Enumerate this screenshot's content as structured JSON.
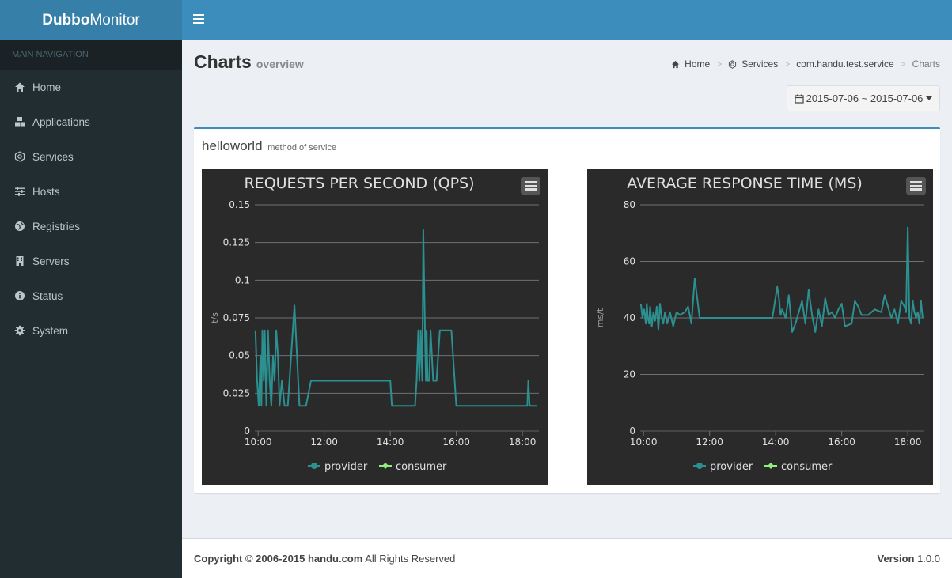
{
  "app": {
    "logo_bold": "Dubbo",
    "logo_rest": "Monitor"
  },
  "sidebar": {
    "header": "MAIN NAVIGATION",
    "items": [
      {
        "label": "Home",
        "icon": "home-icon"
      },
      {
        "label": "Applications",
        "icon": "cubes-icon"
      },
      {
        "label": "Services",
        "icon": "gear-outline-icon"
      },
      {
        "label": "Hosts",
        "icon": "sliders-icon"
      },
      {
        "label": "Registries",
        "icon": "globe-icon"
      },
      {
        "label": "Servers",
        "icon": "building-icon"
      },
      {
        "label": "Status",
        "icon": "info-icon"
      },
      {
        "label": "System",
        "icon": "gear-icon"
      }
    ]
  },
  "page": {
    "title": "Charts",
    "subtitle": "overview"
  },
  "breadcrumb": [
    "Home",
    "Services",
    "com.handu.test.service",
    "Charts"
  ],
  "date_range": "2015-07-06 ~ 2015-07-06",
  "box": {
    "title": "helloworld",
    "subtitle": "method of service"
  },
  "chart_data": [
    {
      "type": "line",
      "title": "REQUESTS PER SECOND (QPS)",
      "ylabel": "t/s",
      "ylim": [
        0,
        0.15
      ],
      "yticks": [
        0,
        0.025,
        0.05,
        0.075,
        0.1,
        0.125,
        0.15
      ],
      "ytick_labels": [
        "0",
        "0.025",
        "0.05",
        "0.075",
        "0.1",
        "0.125",
        "0.15"
      ],
      "xlim": [
        9.9,
        18.5
      ],
      "xticks": [
        10,
        12,
        14,
        16,
        18
      ],
      "xtick_labels": [
        "10:00",
        "12:00",
        "14:00",
        "16:00",
        "18:00"
      ],
      "series": [
        {
          "name": "provider",
          "color": "#2b908f",
          "x": [
            9.92,
            9.97,
            10.02,
            10.07,
            10.1,
            10.13,
            10.17,
            10.2,
            10.25,
            10.3,
            10.35,
            10.4,
            10.45,
            10.5,
            10.55,
            10.6,
            10.65,
            10.72,
            10.8,
            10.85,
            10.9,
            11.0,
            11.1,
            11.25,
            11.35,
            11.45,
            11.6,
            11.65,
            11.8,
            12.0,
            13.0,
            14.0,
            14.05,
            14.5,
            14.75,
            14.8,
            14.85,
            14.88,
            14.92,
            14.97,
            15.0,
            15.05,
            15.08,
            15.1,
            15.13,
            15.18,
            15.22,
            15.3,
            15.4,
            15.5,
            15.6,
            15.75,
            15.85,
            16.0,
            16.15,
            16.2,
            17.0,
            17.5,
            18.0,
            18.15,
            18.18,
            18.22,
            18.3,
            18.45
          ],
          "y": [
            0.0667,
            0.0333,
            0.0167,
            0.05,
            0.0167,
            0.0667,
            0.0333,
            0.0667,
            0.0167,
            0.0667,
            0.0333,
            0.0167,
            0.05,
            0.0333,
            0.0667,
            0.05,
            0.0167,
            0.0333,
            0.0167,
            0.0167,
            0.0167,
            0.05,
            0.0833,
            0.0167,
            0.0167,
            0.0167,
            0.0333,
            0.0333,
            0.0333,
            0.0333,
            0.0333,
            0.0333,
            0.0167,
            0.0167,
            0.0167,
            0.0333,
            0.0667,
            0.0333,
            0.0667,
            0.0333,
            0.1333,
            0.0667,
            0.0333,
            0.0667,
            0.0333,
            0.0333,
            0.0667,
            0.0333,
            0.0333,
            0.0667,
            0.0667,
            0.0667,
            0.0667,
            0.0167,
            0.0167,
            0.0167,
            0.0167,
            0.0167,
            0.0167,
            0.0167,
            0.0333,
            0.0167,
            0.0167,
            0.0167
          ]
        },
        {
          "name": "consumer",
          "color": "#90ee7e",
          "x": [],
          "y": []
        }
      ],
      "legend": "bottom-center"
    },
    {
      "type": "line",
      "title": "AVERAGE RESPONSE TIME (MS)",
      "ylabel": "ms/t",
      "ylim": [
        0,
        80
      ],
      "yticks": [
        0,
        20,
        40,
        60,
        80
      ],
      "ytick_labels": [
        "0",
        "20",
        "40",
        "60",
        "80"
      ],
      "xlim": [
        9.9,
        18.5
      ],
      "xticks": [
        10,
        12,
        14,
        16,
        18
      ],
      "xtick_labels": [
        "10:00",
        "12:00",
        "14:00",
        "16:00",
        "18:00"
      ],
      "series": [
        {
          "name": "provider",
          "color": "#2b908f",
          "x": [
            9.92,
            9.97,
            10.02,
            10.07,
            10.1,
            10.13,
            10.17,
            10.2,
            10.25,
            10.3,
            10.35,
            10.4,
            10.45,
            10.5,
            10.55,
            10.6,
            10.65,
            10.72,
            10.8,
            10.9,
            11.0,
            11.1,
            11.25,
            11.35,
            11.45,
            11.55,
            11.7,
            12.0,
            13.0,
            13.9,
            14.05,
            14.1,
            14.15,
            14.2,
            14.3,
            14.4,
            14.5,
            14.6,
            14.7,
            14.8,
            14.9,
            15.0,
            15.1,
            15.2,
            15.3,
            15.4,
            15.5,
            15.6,
            15.7,
            15.8,
            15.9,
            16.0,
            16.1,
            16.3,
            16.4,
            16.5,
            16.6,
            16.8,
            17.0,
            17.2,
            17.3,
            17.5,
            17.6,
            17.7,
            17.8,
            17.9,
            17.95,
            18.0,
            18.05,
            18.1,
            18.15,
            18.2,
            18.25,
            18.3,
            18.35,
            18.4,
            18.45
          ],
          "y": [
            45,
            40,
            43,
            38,
            45,
            40,
            38,
            44,
            37,
            42,
            39,
            44,
            36,
            45,
            40,
            38,
            42,
            38,
            42,
            37,
            42,
            41,
            42,
            44,
            38,
            54,
            40,
            40,
            40,
            40,
            51,
            47,
            41,
            43,
            40,
            48,
            35,
            38,
            42,
            46,
            38,
            50,
            41,
            35,
            43,
            37,
            47,
            41,
            42,
            40,
            43,
            45,
            37,
            38,
            46,
            44,
            41,
            41,
            43,
            42,
            48,
            40,
            43,
            38,
            46,
            44,
            42,
            72,
            40,
            38,
            46,
            42,
            40,
            42,
            38,
            46,
            40
          ]
        },
        {
          "name": "consumer",
          "color": "#90ee7e",
          "x": [],
          "y": []
        }
      ],
      "legend": "bottom-center"
    }
  ],
  "footer": {
    "copyright": "Copyright © 2006-2015 handu.com",
    "rights": " All Rights Reserved",
    "version_label": "Version",
    "version": " 1.0.0"
  }
}
